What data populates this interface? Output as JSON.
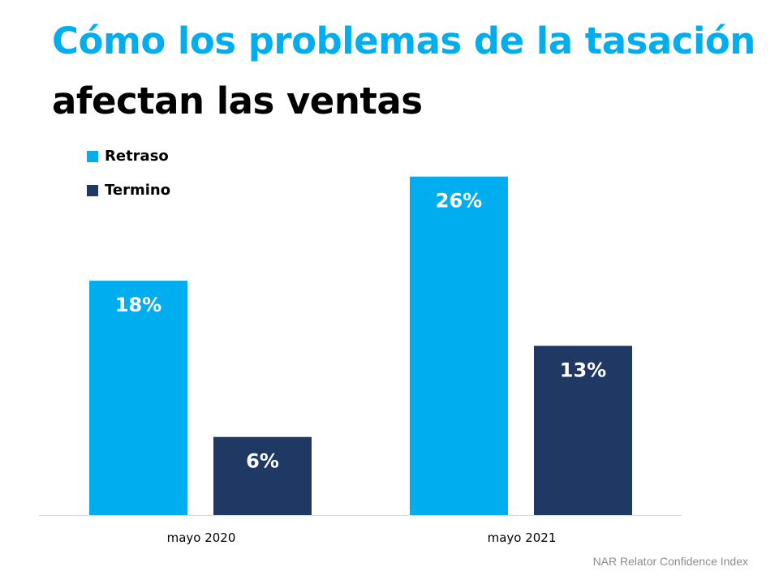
{
  "title_line1": "Cómo los problemas de la tasación",
  "title_line2": "afectan las ventas",
  "source": "NAR Relator Confidence Index",
  "chart_data": {
    "type": "bar",
    "categories": [
      "mayo 2020",
      "mayo 2021"
    ],
    "series": [
      {
        "name": "Retraso",
        "color": "#00aeef",
        "values": [
          18,
          26
        ],
        "labels": [
          "18%",
          "26%"
        ]
      },
      {
        "name": "Termino",
        "color": "#203864",
        "values": [
          6,
          13
        ],
        "labels": [
          "6%",
          "13%"
        ]
      }
    ],
    "ylim": [
      0,
      30
    ],
    "grid": false,
    "legend": "top-left",
    "data_labels": true
  }
}
